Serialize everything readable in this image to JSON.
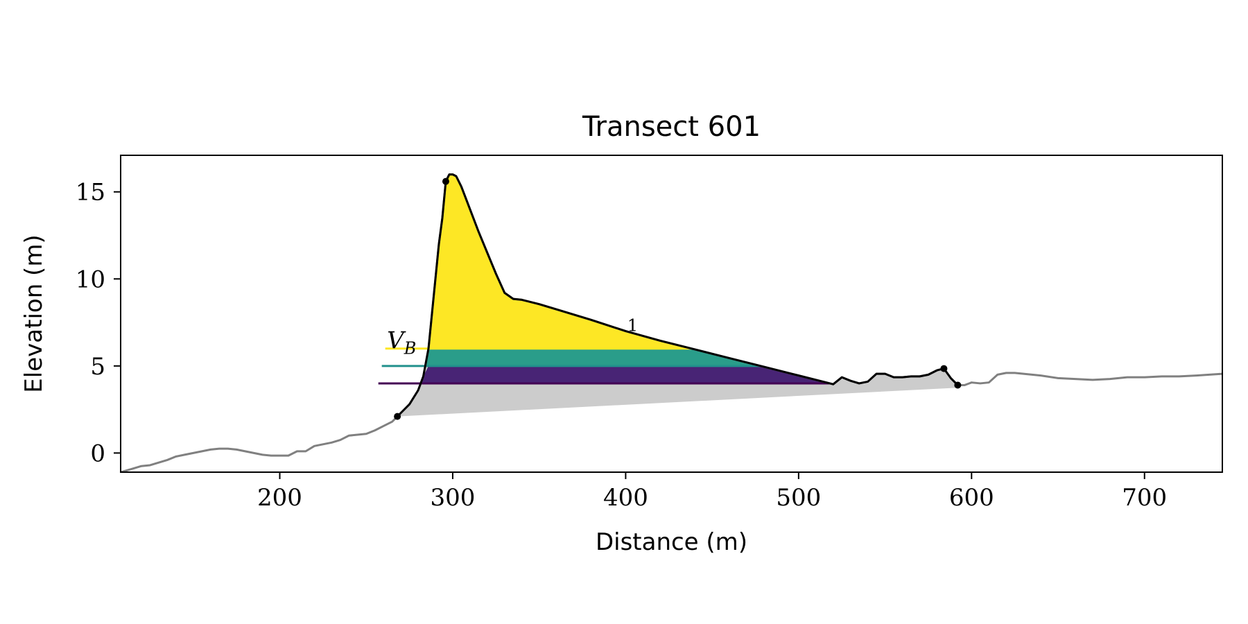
{
  "chart_data": {
    "type": "area",
    "title": "Transect 601",
    "xlabel": "Distance (m)",
    "ylabel": "Elevation (m)",
    "xlim": [
      108,
      745
    ],
    "ylim": [
      -1.1,
      17.1
    ],
    "xticks": [
      200,
      300,
      400,
      500,
      600,
      700
    ],
    "yticks": [
      0,
      5,
      10,
      15
    ],
    "grid": false,
    "legend": "none",
    "annotations": [
      {
        "text": "V",
        "subscript": "B",
        "x": 262,
        "y": 6.0
      },
      {
        "text": "1",
        "x": 401,
        "y": 7.0
      }
    ],
    "colors": {
      "profile": "#808080",
      "dune": "#000000",
      "base_fill": "#cccccc",
      "level_low": "#440154",
      "level_mid": "#21918c",
      "level_high": "#fde725",
      "band_low": "#482475",
      "band_mid": "#2a9d8a",
      "band_top": "#fde725"
    },
    "water_levels": [
      {
        "level": 4.0,
        "x_start": 257
      },
      {
        "level": 5.0,
        "x_start": 259
      },
      {
        "level": 6.0,
        "x_start": 261
      }
    ],
    "markers": [
      {
        "x": 268,
        "y": 2.1
      },
      {
        "x": 296,
        "y": 15.6
      },
      {
        "x": 584,
        "y": 4.85
      },
      {
        "x": 592,
        "y": 3.9
      }
    ],
    "profile": {
      "x": [
        108,
        115,
        120,
        125,
        130,
        135,
        140,
        145,
        150,
        155,
        160,
        165,
        170,
        175,
        180,
        185,
        190,
        195,
        200,
        205,
        210,
        215,
        220,
        225,
        230,
        235,
        240,
        245,
        250,
        255,
        260,
        265,
        270,
        275,
        280,
        283,
        286,
        289,
        292,
        294,
        296,
        298,
        300,
        302,
        305,
        310,
        315,
        320,
        325,
        330,
        335,
        340,
        350,
        360,
        380,
        400,
        420,
        440,
        460,
        480,
        500,
        520,
        525,
        530,
        535,
        540,
        545,
        550,
        555,
        560,
        565,
        570,
        575,
        580,
        584,
        588,
        592,
        596,
        600,
        605,
        610,
        615,
        620,
        625,
        630,
        640,
        650,
        660,
        670,
        680,
        690,
        700,
        710,
        720,
        730,
        745
      ],
      "y": [
        -1.1,
        -0.9,
        -0.75,
        -0.7,
        -0.55,
        -0.4,
        -0.2,
        -0.1,
        0.0,
        0.1,
        0.2,
        0.25,
        0.25,
        0.2,
        0.1,
        0.0,
        -0.1,
        -0.15,
        -0.15,
        -0.15,
        0.1,
        0.1,
        0.4,
        0.5,
        0.6,
        0.75,
        1.0,
        1.05,
        1.1,
        1.3,
        1.55,
        1.8,
        2.3,
        2.8,
        3.6,
        4.4,
        6.0,
        9.0,
        12.0,
        13.5,
        15.6,
        16.0,
        16.0,
        15.9,
        15.3,
        14.0,
        12.7,
        11.5,
        10.3,
        9.2,
        8.85,
        8.8,
        8.55,
        8.25,
        7.65,
        7.0,
        6.45,
        5.95,
        5.45,
        4.95,
        4.45,
        3.95,
        4.35,
        4.15,
        4.0,
        4.1,
        4.55,
        4.55,
        4.35,
        4.35,
        4.4,
        4.4,
        4.5,
        4.75,
        4.85,
        4.3,
        3.9,
        3.9,
        4.05,
        4.0,
        4.05,
        4.5,
        4.6,
        4.6,
        4.55,
        4.45,
        4.3,
        4.25,
        4.2,
        4.25,
        4.35,
        4.35,
        4.4,
        4.4,
        4.45,
        4.55
      ]
    },
    "dune_section": {
      "x_start": 268,
      "x_end": 592
    },
    "base_line": [
      [
        268,
        2.1
      ],
      [
        592,
        3.75
      ]
    ]
  }
}
